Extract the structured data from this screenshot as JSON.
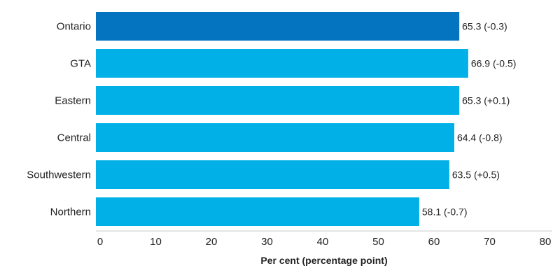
{
  "chart_data": {
    "type": "bar",
    "orientation": "horizontal",
    "categories": [
      "Ontario",
      "GTA",
      "Eastern",
      "Central",
      "Southwestern",
      "Northern"
    ],
    "values": [
      65.3,
      66.9,
      65.3,
      64.4,
      63.5,
      58.1
    ],
    "changes": [
      "(-0.3)",
      "(-0.5)",
      "(+0.1)",
      "(-0.8)",
      "(+0.5)",
      "(-0.7)"
    ],
    "xlabel": "Per cent (percentage point)",
    "xlim": [
      0,
      80
    ],
    "xticks": [
      0,
      10,
      20,
      30,
      40,
      50,
      60,
      70,
      80
    ],
    "grid": false,
    "colors": {
      "highlight": "#0473c0",
      "default": "#00b0e6"
    },
    "highlight_category": "Ontario"
  }
}
